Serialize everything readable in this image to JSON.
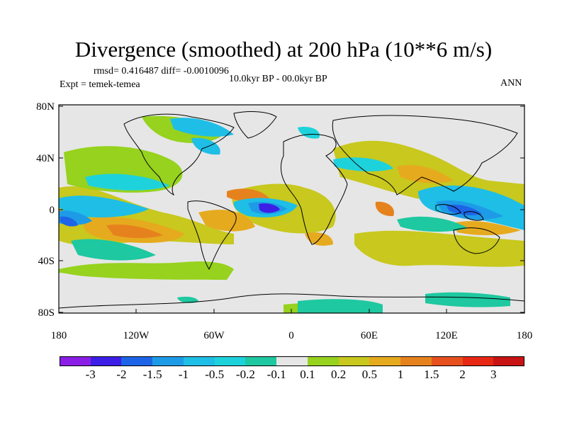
{
  "title": "Divergence (smoothed) at 200 hPa (10**6 m/s)",
  "stats_line": "rmsd= 0.416487 diff= -0.0010096",
  "experiment": "Expt = temek-temea",
  "period": "10.0kyr BP - 00.0kyr BP",
  "season": "ANN",
  "lat_ticks": [
    "80N",
    "40N",
    "0",
    "40S",
    "80S"
  ],
  "lon_ticks": [
    "180",
    "120W",
    "60W",
    "0",
    "60E",
    "120E",
    "180"
  ],
  "colorbar": {
    "labels": [
      "-3",
      "-2",
      "-1.5",
      "-1",
      "-0.5",
      "-0.2",
      "-0.1",
      "0.1",
      "0.2",
      "0.5",
      "1",
      "1.5",
      "2",
      "3"
    ],
    "colors": [
      "#8a1ee6",
      "#3c1ee6",
      "#1e64e6",
      "#1e9be6",
      "#1ebee6",
      "#1ed2dc",
      "#1ec8a0",
      "#e6e6e6",
      "#96d21e",
      "#c8c81e",
      "#e6aa1e",
      "#e6821e",
      "#e6501e",
      "#e62814",
      "#c81414"
    ]
  }
}
